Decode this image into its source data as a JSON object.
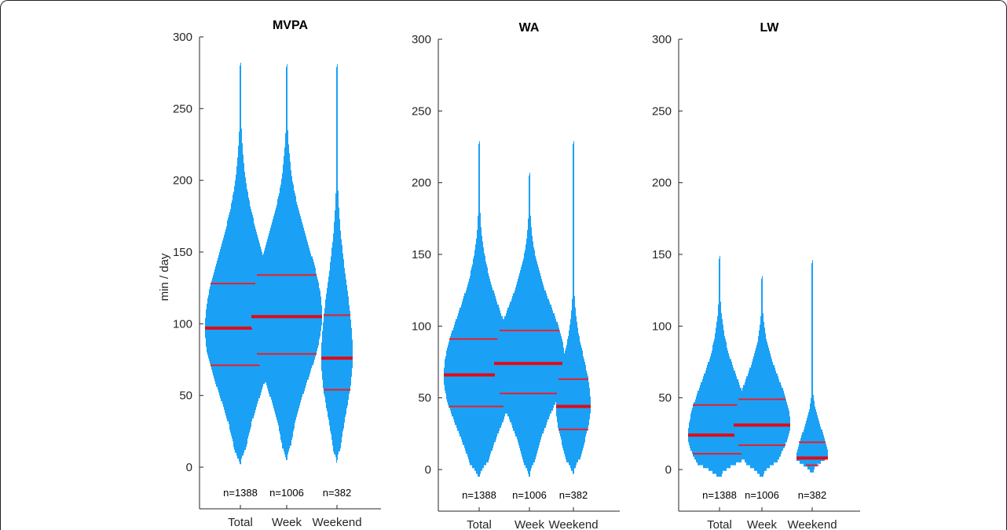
{
  "ylabel": "min / day",
  "colors": {
    "violin": "#1aa1f5",
    "quartile": "#e8202a",
    "median": "#e00b16",
    "axis": "#262626"
  },
  "chart_data": [
    {
      "type": "violin",
      "title": "MVPA",
      "ylabel": "min / day",
      "ylim": [
        -25,
        300
      ],
      "yticks": [
        0,
        50,
        100,
        150,
        200,
        250,
        300
      ],
      "categories": [
        "Total",
        "Week",
        "Weekend"
      ],
      "n_labels": [
        "n=1388",
        "n=1006",
        "n=382"
      ],
      "groups": [
        {
          "min": 2,
          "max": 287,
          "q1": 71,
          "median": 97,
          "q3": 128
        },
        {
          "min": 5,
          "max": 287,
          "q1": 79,
          "median": 105,
          "q3": 134
        },
        {
          "min": 3,
          "max": 287,
          "q1": 54,
          "median": 76,
          "q3": 106
        }
      ]
    },
    {
      "type": "violin",
      "title": "WA",
      "ylabel": "",
      "ylim": [
        -25,
        300
      ],
      "yticks": [
        0,
        50,
        100,
        150,
        200,
        250,
        300
      ],
      "categories": [
        "Total",
        "Week",
        "Weekend"
      ],
      "n_labels": [
        "n=1388",
        "n=1006",
        "n=382"
      ],
      "groups": [
        {
          "min": -5,
          "max": 235,
          "q1": 44,
          "median": 66,
          "q3": 91
        },
        {
          "min": -5,
          "max": 213,
          "q1": 53,
          "median": 74,
          "q3": 97
        },
        {
          "min": -3,
          "max": 235,
          "q1": 28,
          "median": 44,
          "q3": 63
        }
      ]
    },
    {
      "type": "violin",
      "title": "LW",
      "ylabel": "",
      "ylim": [
        -25,
        300
      ],
      "yticks": [
        0,
        50,
        100,
        150,
        200,
        250,
        300
      ],
      "categories": [
        "Total",
        "Week",
        "Weekend"
      ],
      "n_labels": [
        "n=1388",
        "n=1006",
        "n=382"
      ],
      "groups": [
        {
          "min": -5,
          "max": 155,
          "q1": 11,
          "median": 24,
          "q3": 45
        },
        {
          "min": -5,
          "max": 140,
          "q1": 17,
          "median": 31,
          "q3": 49
        },
        {
          "min": -2,
          "max": 152,
          "q1": 3,
          "median": 8,
          "q3": 19
        }
      ]
    }
  ]
}
